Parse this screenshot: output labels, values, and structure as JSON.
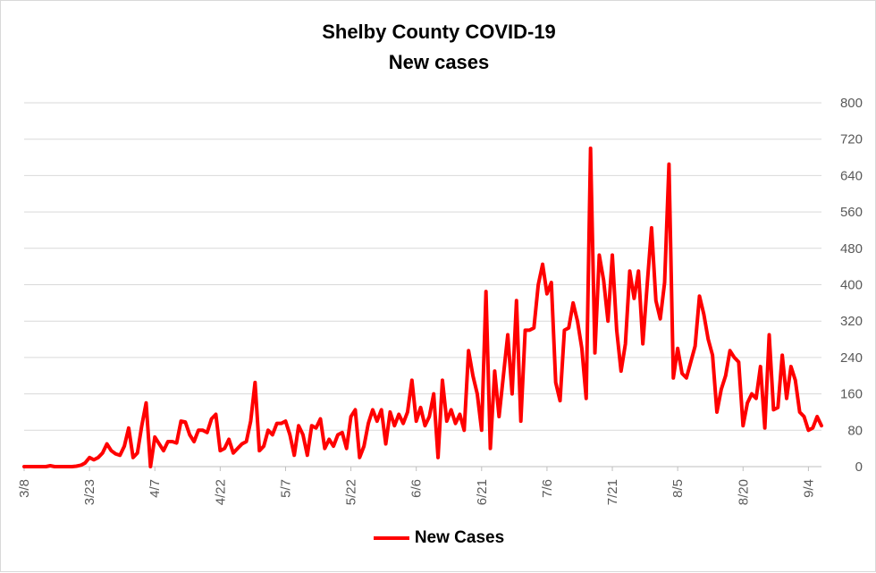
{
  "chart_data": {
    "type": "line",
    "title": [
      "Shelby County COVID-19",
      "New cases"
    ],
    "xlabel": "",
    "ylabel": "",
    "ylim": [
      0,
      800
    ],
    "yticks": [
      0,
      80,
      160,
      240,
      320,
      400,
      480,
      560,
      640,
      720,
      800
    ],
    "y_axis_side": "right",
    "grid": "horizontal",
    "legend": "bottom",
    "xtick_labels": [
      "3/8",
      "3/23",
      "4/7",
      "4/22",
      "5/7",
      "5/22",
      "6/6",
      "6/21",
      "7/6",
      "7/21",
      "8/5",
      "8/20",
      "9/4"
    ],
    "start_date": "3/8",
    "series": [
      {
        "name": "New Cases",
        "color": "#ff0000",
        "values": [
          0,
          0,
          0,
          0,
          0,
          0,
          2,
          0,
          0,
          0,
          0,
          0,
          1,
          3,
          8,
          20,
          15,
          20,
          30,
          50,
          35,
          28,
          25,
          45,
          85,
          20,
          30,
          90,
          140,
          0,
          65,
          50,
          35,
          55,
          55,
          52,
          100,
          98,
          70,
          55,
          80,
          80,
          75,
          105,
          115,
          35,
          40,
          60,
          30,
          40,
          50,
          55,
          100,
          185,
          35,
          45,
          80,
          70,
          95,
          95,
          100,
          70,
          25,
          90,
          70,
          25,
          90,
          85,
          105,
          40,
          60,
          45,
          70,
          75,
          40,
          110,
          125,
          20,
          45,
          95,
          125,
          100,
          125,
          50,
          120,
          90,
          115,
          95,
          120,
          190,
          100,
          130,
          90,
          110,
          160,
          20,
          190,
          100,
          125,
          95,
          115,
          80,
          255,
          200,
          160,
          80,
          385,
          40,
          210,
          110,
          200,
          290,
          160,
          365,
          100,
          300,
          300,
          305,
          400,
          445,
          380,
          405,
          185,
          145,
          300,
          305,
          360,
          320,
          260,
          150,
          700,
          250,
          465,
          410,
          320,
          465,
          300,
          210,
          270,
          430,
          370,
          430,
          270,
          400,
          525,
          365,
          325,
          405,
          665,
          195,
          260,
          205,
          195,
          230,
          265,
          375,
          335,
          280,
          245,
          120,
          170,
          200,
          255,
          240,
          230,
          90,
          140,
          160,
          150,
          220,
          85,
          290,
          125,
          130,
          245,
          150,
          220,
          190,
          120,
          110,
          80,
          85,
          110,
          90
        ]
      }
    ]
  }
}
